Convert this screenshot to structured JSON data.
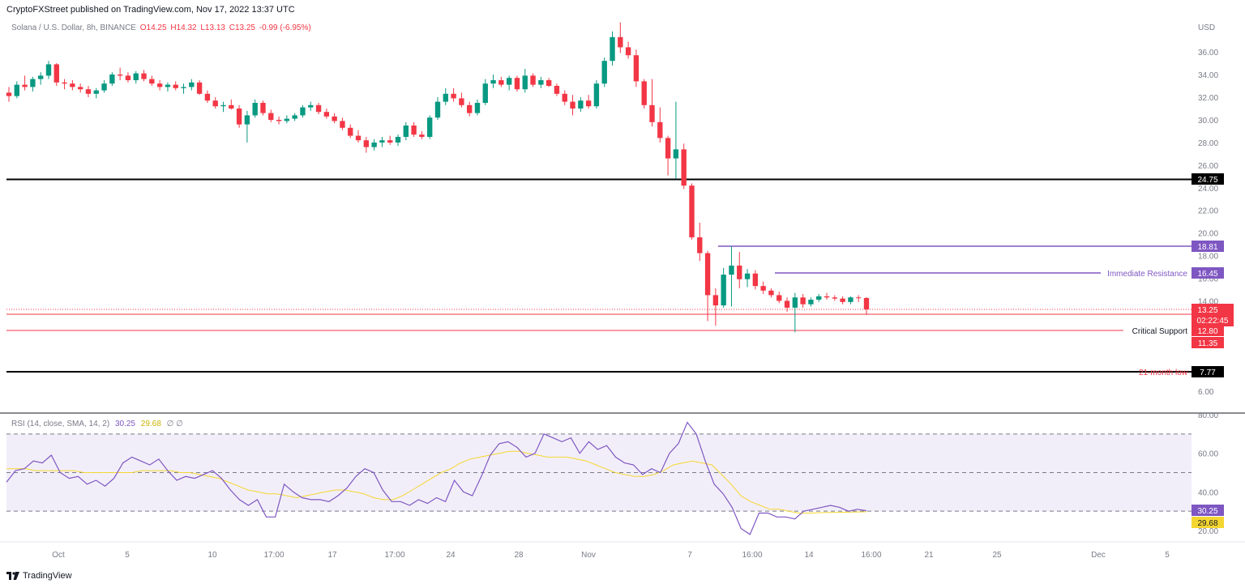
{
  "header": {
    "published": "CryptoFXStreet published on TradingView.com, Nov 17, 2022 13:37 UTC"
  },
  "symbol": {
    "title": "Solana / U.S. Dollar, 8h, BINANCE",
    "open": "O14.25",
    "high": "H14.32",
    "low": "L13.13",
    "close": "C13.25",
    "change": "-0.99 (-6.95%)"
  },
  "rsi_legend": {
    "title": "RSI (14, close, SMA, 14, 2)",
    "rsi_value": "30.25",
    "sma_value": "29.68",
    "extra": "∅ ∅"
  },
  "footer": {
    "brand": "TradingView"
  },
  "colors": {
    "up": "#089981",
    "down": "#f23645",
    "level_black": "#000000",
    "level_purple": "#7e57c2",
    "level_red": "#f23645",
    "rsi_line": "#7e57c2",
    "rsi_sma": "#f5d630",
    "rsi_band": "#ede7f6"
  },
  "chart_data": [
    {
      "type": "candlestick",
      "title": "Solana / U.S. Dollar, 8h, BINANCE",
      "ylabel": "USD",
      "y_ticks": [
        "36.00",
        "34.00",
        "32.00",
        "30.00",
        "28.00",
        "26.00",
        "24.00",
        "22.00",
        "20.00",
        "18.00",
        "16.00",
        "14.00",
        "6.00"
      ],
      "x_ticks": [
        "Oct",
        "5",
        "10",
        "17:00",
        "17",
        "17:00",
        "24",
        "28",
        "Nov",
        "7",
        "16:00",
        "14",
        "16:00",
        "21",
        "25",
        "Dec",
        "5"
      ],
      "price_labels": [
        {
          "value": "24.75",
          "style": "black"
        },
        {
          "value": "18.81",
          "style": "purple"
        },
        {
          "value": "16.45",
          "style": "purple"
        },
        {
          "value": "13.25",
          "style": "red"
        },
        {
          "value": "02:22:45",
          "style": "red"
        },
        {
          "value": "12.80",
          "style": "red"
        },
        {
          "value": "11.35",
          "style": "red"
        },
        {
          "value": "7.77",
          "style": "black"
        }
      ],
      "annotations": [
        "Immediate Resistance",
        "Critical Support",
        "21-month low"
      ],
      "horizontal_levels": [
        24.75,
        18.81,
        16.45,
        12.8,
        11.35,
        7.77
      ],
      "ohlc": [
        [
          32.4,
          32.9,
          31.6,
          32.1
        ],
        [
          32.1,
          33.4,
          31.9,
          33.1
        ],
        [
          33.1,
          33.9,
          32.6,
          32.9
        ],
        [
          32.9,
          33.8,
          32.5,
          33.6
        ],
        [
          33.6,
          34.2,
          33.1,
          33.9
        ],
        [
          33.9,
          35.2,
          33.6,
          34.9
        ],
        [
          34.9,
          35.0,
          33.0,
          33.3
        ],
        [
          33.3,
          33.6,
          32.7,
          33.2
        ],
        [
          33.2,
          33.5,
          32.6,
          32.9
        ],
        [
          32.9,
          33.2,
          32.4,
          32.7
        ],
        [
          32.7,
          33.0,
          32.0,
          32.3
        ],
        [
          32.3,
          32.8,
          31.9,
          32.6
        ],
        [
          32.6,
          33.5,
          32.4,
          33.2
        ],
        [
          33.2,
          34.2,
          33.0,
          34.0
        ],
        [
          34.0,
          34.6,
          33.5,
          33.9
        ],
        [
          33.9,
          34.2,
          33.3,
          33.5
        ],
        [
          33.5,
          34.3,
          33.2,
          34.1
        ],
        [
          34.1,
          34.4,
          33.4,
          33.6
        ],
        [
          33.6,
          33.9,
          33.0,
          33.2
        ],
        [
          33.2,
          33.5,
          32.6,
          32.9
        ],
        [
          32.9,
          33.3,
          32.5,
          33.1
        ],
        [
          33.1,
          33.4,
          32.6,
          32.8
        ],
        [
          32.8,
          33.2,
          32.3,
          32.9
        ],
        [
          32.9,
          33.6,
          32.6,
          33.3
        ],
        [
          33.3,
          33.5,
          32.2,
          32.3
        ],
        [
          32.3,
          32.6,
          31.5,
          31.7
        ],
        [
          31.7,
          32.0,
          31.0,
          31.2
        ],
        [
          31.2,
          31.6,
          30.7,
          31.3
        ],
        [
          31.3,
          31.8,
          30.9,
          31.0
        ],
        [
          31.0,
          31.3,
          29.3,
          29.6
        ],
        [
          29.6,
          30.8,
          28.0,
          30.4
        ],
        [
          30.4,
          31.8,
          30.2,
          31.5
        ],
        [
          31.5,
          31.7,
          30.4,
          30.6
        ],
        [
          30.6,
          30.9,
          29.8,
          30.0
        ],
        [
          30.0,
          30.3,
          29.6,
          29.9
        ],
        [
          29.9,
          30.4,
          29.7,
          30.1
        ],
        [
          30.1,
          30.6,
          29.9,
          30.4
        ],
        [
          30.4,
          31.3,
          30.2,
          31.1
        ],
        [
          31.1,
          31.6,
          30.8,
          31.3
        ],
        [
          31.3,
          31.5,
          30.5,
          30.7
        ],
        [
          30.7,
          31.0,
          30.1,
          30.3
        ],
        [
          30.3,
          30.6,
          29.7,
          29.9
        ],
        [
          29.9,
          30.2,
          29.1,
          29.3
        ],
        [
          29.3,
          29.6,
          28.4,
          28.6
        ],
        [
          28.6,
          29.1,
          28.0,
          28.2
        ],
        [
          28.2,
          28.5,
          27.1,
          27.6
        ],
        [
          27.6,
          28.3,
          27.3,
          28.0
        ],
        [
          28.0,
          28.5,
          27.6,
          28.2
        ],
        [
          28.2,
          28.6,
          27.8,
          28.0
        ],
        [
          28.0,
          28.7,
          27.7,
          28.5
        ],
        [
          28.5,
          29.8,
          28.2,
          29.5
        ],
        [
          29.5,
          29.8,
          28.5,
          28.7
        ],
        [
          28.7,
          29.0,
          28.3,
          28.5
        ],
        [
          28.5,
          30.4,
          28.3,
          30.2
        ],
        [
          30.2,
          32.0,
          30.0,
          31.6
        ],
        [
          31.6,
          32.8,
          31.3,
          32.3
        ],
        [
          32.3,
          32.8,
          31.6,
          31.9
        ],
        [
          31.9,
          32.4,
          31.1,
          31.3
        ],
        [
          31.3,
          31.6,
          30.3,
          30.6
        ],
        [
          30.6,
          31.8,
          30.4,
          31.5
        ],
        [
          31.5,
          33.6,
          31.3,
          33.2
        ],
        [
          33.2,
          34.0,
          32.8,
          33.5
        ],
        [
          33.5,
          33.8,
          32.9,
          33.1
        ],
        [
          33.1,
          33.9,
          32.6,
          33.7
        ],
        [
          33.7,
          33.9,
          32.5,
          32.7
        ],
        [
          32.7,
          34.5,
          32.4,
          33.9
        ],
        [
          33.9,
          34.1,
          32.9,
          33.1
        ],
        [
          33.1,
          33.8,
          32.8,
          33.5
        ],
        [
          33.5,
          33.7,
          32.9,
          33.0
        ],
        [
          33.0,
          33.2,
          32.1,
          32.3
        ],
        [
          32.3,
          32.6,
          31.3,
          31.6
        ],
        [
          31.6,
          32.2,
          30.4,
          31.0
        ],
        [
          31.0,
          32.0,
          30.7,
          31.7
        ],
        [
          31.7,
          32.2,
          31.0,
          31.2
        ],
        [
          31.2,
          33.5,
          31.0,
          33.2
        ],
        [
          33.2,
          35.5,
          32.9,
          35.2
        ],
        [
          35.2,
          37.8,
          34.8,
          37.3
        ],
        [
          37.3,
          38.6,
          35.9,
          36.4
        ],
        [
          36.4,
          36.9,
          35.4,
          35.7
        ],
        [
          35.7,
          36.2,
          32.9,
          33.4
        ],
        [
          33.4,
          33.6,
          31.0,
          31.3
        ],
        [
          31.3,
          33.6,
          29.4,
          29.8
        ],
        [
          29.8,
          31.1,
          28.0,
          28.4
        ],
        [
          28.4,
          28.6,
          25.1,
          26.6
        ],
        [
          26.6,
          31.6,
          24.8,
          27.4
        ],
        [
          27.4,
          27.9,
          23.9,
          24.2
        ],
        [
          24.2,
          24.4,
          19.4,
          19.6
        ],
        [
          19.6,
          20.9,
          17.5,
          18.2
        ],
        [
          18.2,
          18.4,
          13.0,
          14.5
        ],
        [
          14.5,
          15.1,
          12.9,
          13.6
        ],
        [
          13.6,
          16.9,
          13.4,
          16.3
        ],
        [
          16.3,
          18.8,
          13.5,
          17.1
        ],
        [
          17.1,
          18.3,
          15.1,
          15.9
        ],
        [
          15.9,
          16.8,
          15.2,
          16.4
        ],
        [
          16.4,
          16.7,
          15.0,
          15.3
        ],
        [
          15.3,
          15.7,
          14.6,
          14.9
        ],
        [
          14.9,
          15.1,
          14.3,
          14.5
        ],
        [
          14.5,
          14.8,
          13.8,
          14.0
        ],
        [
          14.0,
          14.3,
          13.2,
          13.4
        ],
        [
          13.4,
          14.7,
          12.6,
          14.3
        ],
        [
          14.3,
          14.6,
          13.4,
          13.7
        ],
        [
          13.7,
          14.3,
          13.5,
          14.1
        ],
        [
          14.1,
          14.6,
          13.9,
          14.4
        ],
        [
          14.4,
          14.7,
          14.1,
          14.3
        ],
        [
          14.3,
          14.5,
          14.0,
          14.2
        ],
        [
          14.2,
          14.4,
          13.7,
          13.9
        ],
        [
          13.9,
          14.4,
          13.7,
          14.3
        ],
        [
          14.3,
          14.5,
          13.9,
          14.25
        ],
        [
          14.25,
          14.32,
          13.13,
          13.25
        ]
      ]
    },
    {
      "type": "line",
      "title": "RSI (14, close, SMA, 14, 2)",
      "y_ticks": [
        "80.00",
        "60.00",
        "40.00",
        "20.00"
      ],
      "band": [
        30,
        70
      ],
      "midline": 50,
      "series": [
        {
          "name": "RSI",
          "values": [
            45,
            51,
            52,
            56,
            55,
            59,
            50,
            47,
            48,
            44,
            46,
            43,
            47,
            55,
            58,
            56,
            54,
            57,
            51,
            46,
            48,
            47,
            49,
            51,
            47,
            41,
            36,
            33,
            36,
            27,
            27,
            44,
            40,
            37,
            36,
            36,
            35,
            38,
            42,
            48,
            52,
            50,
            41,
            35,
            35,
            33,
            36,
            34,
            37,
            35,
            46,
            40,
            38,
            48,
            59,
            65,
            66,
            63,
            58,
            60,
            70,
            68,
            66,
            68,
            60,
            66,
            62,
            64,
            58,
            55,
            54,
            49,
            52,
            50,
            60,
            65,
            76,
            70,
            56,
            44,
            39,
            32,
            21,
            18,
            29,
            29,
            27,
            27,
            26,
            30,
            31,
            32,
            33,
            32,
            30,
            31,
            30.25
          ]
        },
        {
          "name": "SMA",
          "values": [
            52,
            52,
            52,
            51,
            51,
            51,
            51,
            51,
            50,
            50,
            50,
            50,
            50,
            50,
            51,
            51,
            51,
            51,
            50,
            50,
            49,
            48,
            47,
            45,
            43,
            41,
            40,
            39,
            39,
            38,
            37,
            38,
            39,
            40,
            41,
            41,
            40,
            39,
            37,
            36,
            36,
            38,
            41,
            44,
            47,
            50,
            52,
            55,
            57,
            58,
            59,
            60,
            61,
            61,
            60,
            59,
            58,
            58,
            58,
            57,
            56,
            54,
            52,
            50,
            49,
            48,
            48,
            49,
            51,
            54,
            55,
            56,
            55,
            54,
            49,
            44,
            38,
            35,
            33,
            31,
            31,
            30,
            29,
            29,
            29.2,
            29.3,
            29.4,
            29.5,
            29.6,
            29.68
          ]
        }
      ]
    }
  ]
}
